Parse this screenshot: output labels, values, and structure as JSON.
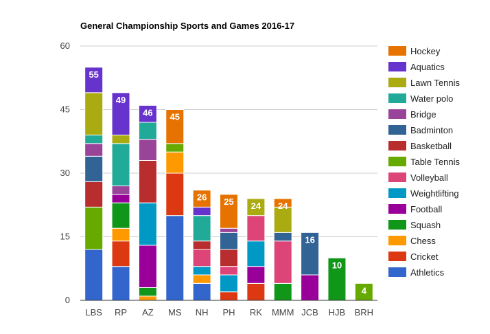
{
  "chart_data": {
    "type": "bar",
    "stacked": true,
    "title": "General Championship Sports and Games 2016-17",
    "xlabel": "",
    "ylabel": "",
    "ylim": [
      0,
      60
    ],
    "yticks": [
      0,
      15,
      30,
      45,
      60
    ],
    "grid": true,
    "legend_position": "right",
    "categories": [
      "LBS",
      "RP",
      "AZ",
      "MS",
      "NH",
      "PH",
      "RK",
      "MMM",
      "JCB",
      "HJB",
      "BRH"
    ],
    "totals": [
      55,
      49,
      46,
      45,
      26,
      25,
      24,
      24,
      16,
      10,
      4
    ],
    "series": [
      {
        "name": "Athletics",
        "color": "#3366cc",
        "values": [
          12,
          8,
          0,
          20,
          4,
          0,
          0,
          0,
          0,
          0,
          0
        ]
      },
      {
        "name": "Cricket",
        "color": "#dc3912",
        "values": [
          0,
          6,
          0,
          10,
          0,
          2,
          4,
          0,
          0,
          0,
          0
        ]
      },
      {
        "name": "Chess",
        "color": "#ff9900",
        "values": [
          0,
          3,
          1,
          5,
          2,
          0,
          0,
          0,
          0,
          0,
          0
        ]
      },
      {
        "name": "Squash",
        "color": "#109618",
        "values": [
          0,
          6,
          2,
          0,
          0,
          0,
          0,
          4,
          0,
          10,
          0
        ]
      },
      {
        "name": "Football",
        "color": "#990099",
        "values": [
          0,
          2,
          10,
          0,
          0,
          0,
          4,
          0,
          6,
          0,
          0
        ]
      },
      {
        "name": "Weightlifting",
        "color": "#0099c6",
        "values": [
          0,
          0,
          10,
          0,
          2,
          4,
          6,
          0,
          0,
          0,
          0
        ]
      },
      {
        "name": "Volleyball",
        "color": "#dd4477",
        "values": [
          0,
          0,
          0,
          0,
          4,
          2,
          6,
          10,
          0,
          0,
          0
        ]
      },
      {
        "name": "Table Tennis",
        "color": "#66aa00",
        "values": [
          10,
          0,
          0,
          2,
          0,
          0,
          0,
          0,
          0,
          0,
          4
        ]
      },
      {
        "name": "Basketball",
        "color": "#b82e2e",
        "values": [
          6,
          0,
          10,
          0,
          2,
          4,
          0,
          0,
          0,
          0,
          0
        ]
      },
      {
        "name": "Badminton",
        "color": "#316395",
        "values": [
          6,
          0,
          0,
          0,
          0,
          4,
          0,
          2,
          10,
          0,
          0
        ]
      },
      {
        "name": "Bridge",
        "color": "#994499",
        "values": [
          3,
          2,
          5,
          0,
          0,
          1,
          0,
          0,
          0,
          0,
          0
        ]
      },
      {
        "name": "Water polo",
        "color": "#22aa99",
        "values": [
          2,
          10,
          4,
          0,
          6,
          0,
          0,
          0,
          0,
          0,
          0
        ]
      },
      {
        "name": "Lawn Tennis",
        "color": "#aaaa11",
        "values": [
          10,
          2,
          0,
          0,
          0,
          0,
          4,
          6,
          0,
          0,
          0
        ]
      },
      {
        "name": "Aquatics",
        "color": "#6633cc",
        "values": [
          6,
          10,
          4,
          0,
          2,
          0,
          0,
          0,
          0,
          0,
          0
        ]
      },
      {
        "name": "Hockey",
        "color": "#e67300",
        "values": [
          0,
          0,
          0,
          8,
          4,
          8,
          0,
          2,
          0,
          0,
          0
        ]
      }
    ],
    "legend_order": [
      "Hockey",
      "Aquatics",
      "Lawn Tennis",
      "Water polo",
      "Bridge",
      "Badminton",
      "Basketball",
      "Table Tennis",
      "Volleyball",
      "Weightlifting",
      "Football",
      "Squash",
      "Chess",
      "Cricket",
      "Athletics"
    ]
  },
  "colors": {
    "gridline": "#cccccc",
    "baseline": "#333333",
    "background": "#ffffff"
  }
}
